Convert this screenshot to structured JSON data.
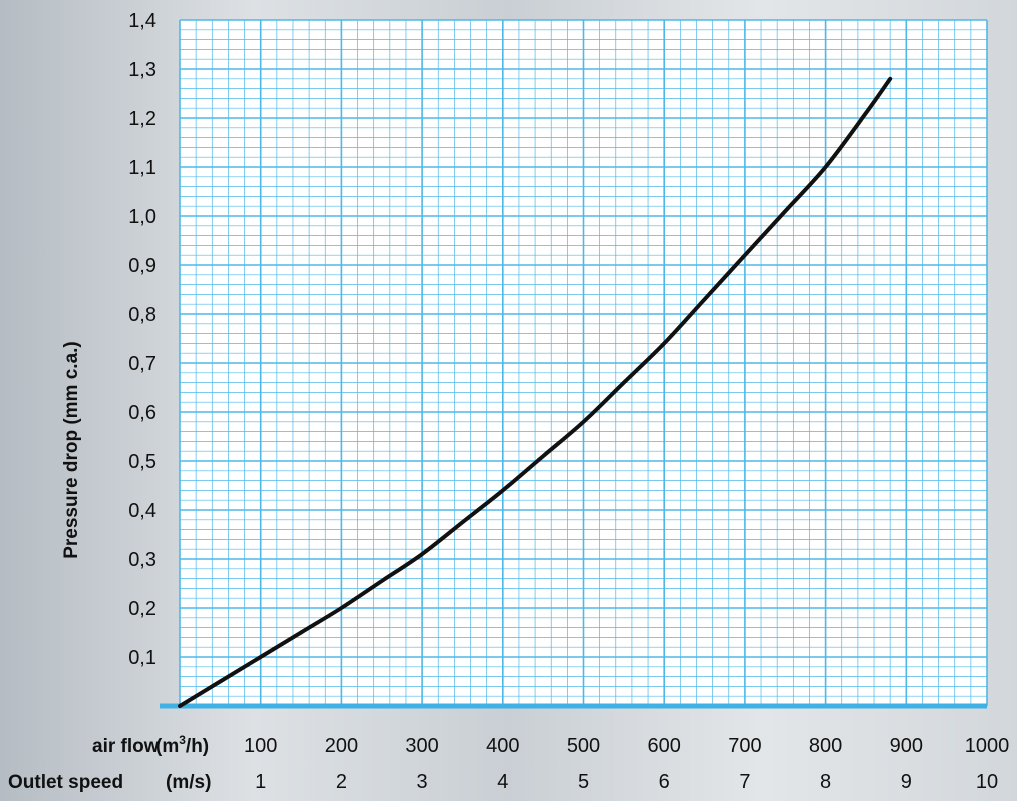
{
  "chart_data": {
    "type": "line",
    "ylabel": "Pressure drop (mm c.a.)",
    "xlabel": "air flow",
    "xlabel_unit": "(m³/h)",
    "secondary_xlabel": "Outlet speed",
    "secondary_xlabel_unit": "(m/s)",
    "xlim": [
      0,
      1000
    ],
    "ylim": [
      0,
      1.4
    ],
    "grid": true,
    "x_ticks": [
      "100",
      "200",
      "300",
      "400",
      "500",
      "600",
      "700",
      "800",
      "900",
      "1000"
    ],
    "secondary_x_ticks": [
      "1",
      "2",
      "3",
      "4",
      "5",
      "6",
      "7",
      "8",
      "9",
      "10"
    ],
    "y_ticks": [
      "0,1",
      "0,2",
      "0,3",
      "0,4",
      "0,5",
      "0,6",
      "0,7",
      "0,8",
      "0,9",
      "1,0",
      "1,1",
      "1,2",
      "1,3",
      "1,4"
    ],
    "series": [
      {
        "x": [
          0,
          50,
          100,
          150,
          200,
          250,
          300,
          350,
          400,
          450,
          500,
          550,
          600,
          650,
          700,
          750,
          800,
          850,
          880
        ],
        "values": [
          0.0,
          0.05,
          0.1,
          0.15,
          0.2,
          0.255,
          0.31,
          0.375,
          0.44,
          0.51,
          0.58,
          0.66,
          0.74,
          0.83,
          0.92,
          1.01,
          1.1,
          1.21,
          1.28
        ]
      }
    ],
    "colors": {
      "grid": "#4db8e8",
      "baseline": "#3fb1e5",
      "plot_bg": "#ffffff",
      "curve": "#111111"
    }
  }
}
